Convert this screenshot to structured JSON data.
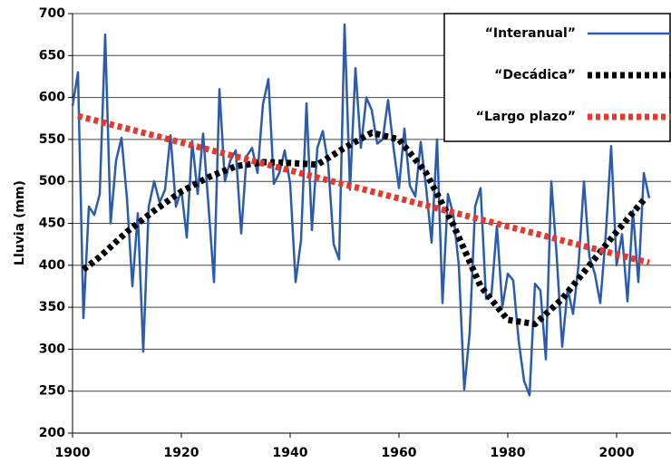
{
  "chart_data": {
    "type": "line",
    "y_label": "Lluvia (mm)",
    "xlim": [
      1900,
      2010
    ],
    "xticks": [
      1900,
      1920,
      1940,
      1960,
      1980,
      2000
    ],
    "ylim": [
      200,
      700
    ],
    "yticks": [
      200,
      250,
      300,
      350,
      400,
      450,
      500,
      550,
      600,
      650,
      700
    ],
    "grid": true,
    "legend": "upper right",
    "series": [
      {
        "name": "“Interanual”",
        "color": "#2b5cab",
        "style": "solid",
        "x": [
          1900,
          1901,
          1902,
          1903,
          1904,
          1905,
          1906,
          1907,
          1908,
          1909,
          1910,
          1911,
          1912,
          1913,
          1914,
          1915,
          1916,
          1917,
          1918,
          1919,
          1920,
          1921,
          1922,
          1923,
          1924,
          1925,
          1926,
          1927,
          1928,
          1929,
          1930,
          1931,
          1932,
          1933,
          1934,
          1935,
          1936,
          1937,
          1938,
          1939,
          1940,
          1941,
          1942,
          1943,
          1944,
          1945,
          1946,
          1947,
          1948,
          1949,
          1950,
          1951,
          1952,
          1953,
          1954,
          1955,
          1956,
          1957,
          1958,
          1959,
          1960,
          1961,
          1962,
          1963,
          1964,
          1965,
          1966,
          1967,
          1968,
          1969,
          1970,
          1971,
          1972,
          1973,
          1974,
          1975,
          1976,
          1977,
          1978,
          1979,
          1980,
          1981,
          1982,
          1983,
          1984,
          1985,
          1986,
          1987,
          1988,
          1989,
          1990,
          1991,
          1992,
          1993,
          1994,
          1995,
          1996,
          1997,
          1998,
          1999,
          2000,
          2001,
          2002,
          2003,
          2004,
          2005,
          2006
        ],
        "values": [
          590,
          630,
          337,
          470,
          460,
          485,
          675,
          450,
          525,
          552,
          480,
          375,
          462,
          297,
          470,
          500,
          475,
          490,
          555,
          470,
          490,
          433,
          548,
          485,
          557,
          470,
          380,
          610,
          500,
          525,
          537,
          438,
          530,
          540,
          510,
          592,
          622,
          497,
          510,
          537,
          497,
          380,
          430,
          593,
          442,
          540,
          560,
          520,
          425,
          407,
          687,
          490,
          635,
          540,
          600,
          585,
          545,
          550,
          597,
          540,
          492,
          563,
          495,
          482,
          547,
          492,
          427,
          550,
          355,
          485,
          460,
          400,
          252,
          320,
          470,
          492,
          360,
          365,
          447,
          350,
          390,
          382,
          310,
          262,
          245,
          378,
          370,
          288,
          500,
          410,
          303,
          372,
          342,
          400,
          500,
          410,
          390,
          355,
          435,
          542,
          400,
          437,
          357,
          465,
          380,
          510,
          480
        ]
      },
      {
        "name": "“Decádica”",
        "color": "#000000",
        "style": "dotted",
        "x": [
          1902,
          1905,
          1910,
          1915,
          1920,
          1925,
          1930,
          1935,
          1940,
          1945,
          1950,
          1955,
          1960,
          1965,
          1970,
          1975,
          1980,
          1985,
          1990,
          1995,
          2000,
          2005
        ],
        "values": [
          395,
          410,
          440,
          465,
          488,
          505,
          518,
          523,
          522,
          520,
          540,
          558,
          550,
          510,
          448,
          375,
          335,
          330,
          360,
          400,
          440,
          478
        ]
      },
      {
        "name": "“Largo plazo”",
        "color": "#e8382c",
        "style": "dotted",
        "x": [
          1901,
          2006
        ],
        "values": [
          578,
          403
        ]
      }
    ]
  }
}
